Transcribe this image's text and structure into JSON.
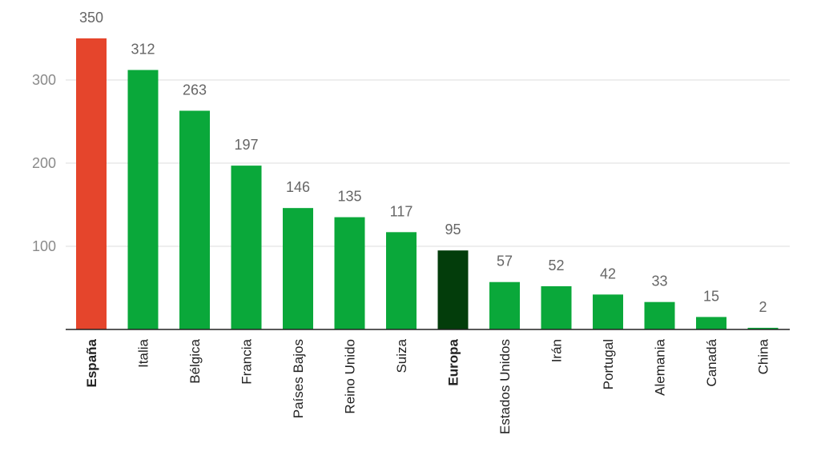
{
  "chart_data": {
    "type": "bar",
    "title": "",
    "xlabel": "",
    "ylabel": "",
    "categories": [
      "España",
      "Italia",
      "Bélgica",
      "Francia",
      "Países Bajos",
      "Reino Unido",
      "Suiza",
      "Europa",
      "Estados Unidos",
      "Irán",
      "Portugal",
      "Alemania",
      "Canadá",
      "China"
    ],
    "values": [
      350,
      312,
      263,
      197,
      146,
      135,
      117,
      95,
      57,
      52,
      42,
      33,
      15,
      2
    ],
    "bold_categories": [
      "España",
      "Europa"
    ],
    "bar_colors": [
      "#e5452c",
      "#0aa83a",
      "#0aa83a",
      "#0aa83a",
      "#0aa83a",
      "#0aa83a",
      "#0aa83a",
      "#033d0b",
      "#0aa83a",
      "#0aa83a",
      "#0aa83a",
      "#0aa83a",
      "#0aa83a",
      "#0aa83a"
    ],
    "yticks": [
      100,
      200,
      300
    ],
    "ylim": [
      0,
      350
    ],
    "grid": true,
    "legend": "none"
  },
  "colors": {
    "highlight": "#e5452c",
    "default_bar": "#0aa83a",
    "aggregate_bar": "#033d0b"
  }
}
